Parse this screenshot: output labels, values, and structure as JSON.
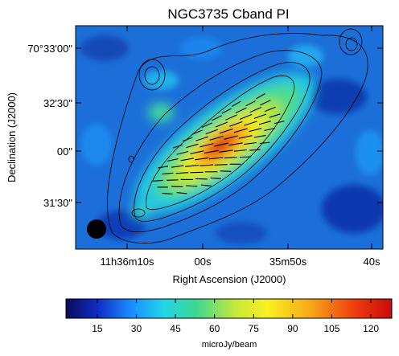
{
  "chart_data": {
    "type": "heatmap",
    "title": "NGC3735  Cband  PI",
    "xlabel": "Right Ascension (J2000)",
    "ylabel": "Declination (J2000)",
    "x_ticks": [
      "11h36m10s",
      "00s",
      "35m50s",
      "40s"
    ],
    "y_ticks": [
      "70°33'00\"",
      "32'30\"",
      "00\"",
      "31'30\""
    ],
    "colorbar": {
      "label": "microJy/beam",
      "ticks": [
        15,
        30,
        45,
        60,
        75,
        90,
        105,
        120
      ],
      "range": [
        3,
        128
      ]
    },
    "colormap_stops": [
      "#0a0a5a",
      "#1030c8",
      "#1a8cff",
      "#22d6e8",
      "#3cd890",
      "#c8e83c",
      "#f8f020",
      "#f8a818",
      "#f04010",
      "#c80a0a"
    ],
    "contour_color": "#000000",
    "vector_color": "#000000",
    "beam_color": "#000000"
  }
}
